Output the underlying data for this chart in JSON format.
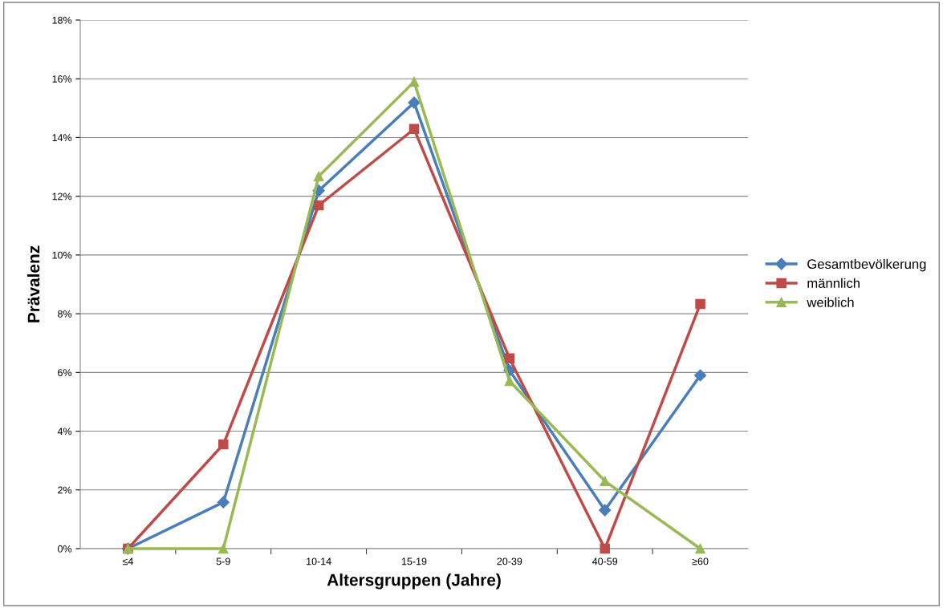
{
  "chart_data": {
    "type": "line",
    "xlabel": "Altersgruppen (Jahre)",
    "ylabel": "Prävalenz",
    "categories": [
      "≤4",
      "5-9",
      "10-14",
      "15-19",
      "20-39",
      "40-59",
      "≥60"
    ],
    "series": [
      {
        "name": "Gesamtbevölkerung",
        "color": "#4a7ebb",
        "marker": "diamond",
        "values": [
          0,
          1.58,
          12.19,
          15.19,
          6.07,
          1.31,
          5.9
        ]
      },
      {
        "name": "männlich",
        "color": "#be4b48",
        "marker": "square",
        "values": [
          0,
          3.55,
          11.69,
          14.29,
          6.48,
          0,
          8.33
        ]
      },
      {
        "name": "weiblich",
        "color": "#98b954",
        "marker": "triangle",
        "values": [
          0,
          0,
          12.68,
          15.9,
          5.71,
          2.3,
          0
        ]
      }
    ],
    "ylim": [
      0,
      18
    ],
    "yticks": [
      {
        "value": 0,
        "label": "0%"
      },
      {
        "value": 2,
        "label": "2%"
      },
      {
        "value": 4,
        "label": "4%"
      },
      {
        "value": 6,
        "label": "6%"
      },
      {
        "value": 8,
        "label": "8%"
      },
      {
        "value": 10,
        "label": "10%"
      },
      {
        "value": 12,
        "label": "12%"
      },
      {
        "value": 14,
        "label": "14%"
      },
      {
        "value": 16,
        "label": "16%"
      },
      {
        "value": 18,
        "label": "18%"
      }
    ],
    "grid": "y",
    "legend": "right",
    "line_style": "solid"
  }
}
